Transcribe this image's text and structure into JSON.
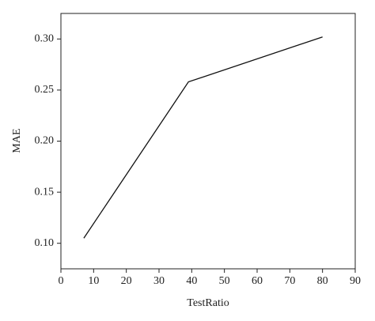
{
  "chart_data": {
    "type": "line",
    "x_label": "TestRatio",
    "y_label": "MAE",
    "x": [
      7,
      39,
      80
    ],
    "series": [
      {
        "values": [
          0.105,
          0.258,
          0.302
        ],
        "color": "#111111"
      }
    ],
    "xlim": [
      0,
      90
    ],
    "xticks": [
      0,
      10,
      20,
      30,
      40,
      50,
      60,
      70,
      80,
      90
    ],
    "ylim": [
      0.075,
      0.325
    ],
    "yticks": [
      {
        "value": 0.1,
        "label": "0.10"
      },
      0.15,
      {
        "value": 0.2,
        "label": "0.20"
      },
      0.25,
      {
        "value": 0.3,
        "label": "0.30"
      }
    ],
    "grid": false
  }
}
